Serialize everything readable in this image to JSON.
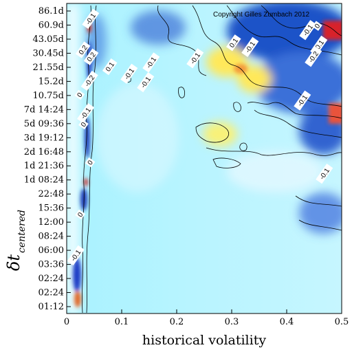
{
  "chart_data": {
    "type": "heatmap",
    "title": "",
    "copyright": "Copyright Gilles Zumbach 2012",
    "xlabel": "historical volatility",
    "ylabel_main": "δt",
    "ylabel_sub": "centered",
    "xlim": [
      0,
      0.5
    ],
    "x_ticks": [
      "0",
      "0.1",
      "0.2",
      "0.3",
      "0.4",
      "0.5"
    ],
    "y_ticks": [
      "01:12",
      "02:24",
      "02:24",
      "03:36",
      "06:00",
      "08:24",
      "12:00",
      "15:36",
      "22:48",
      "1d 08:24",
      "1d 21:36",
      "2d 16:48",
      "3d 19:12",
      "5d 09:36",
      "7d 14:24",
      "10.75d",
      "15.2d",
      "21.55d",
      "30.45d",
      "43.05d",
      "60.9d",
      "86.1d"
    ],
    "contour_labels": [
      {
        "text": "-0.1",
        "x": 0.045,
        "y": 20.4
      },
      {
        "text": "-0.1",
        "x": 0.44,
        "y": 19.6
      },
      {
        "text": "-0.1",
        "x": 0.46,
        "y": 18.5
      },
      {
        "text": "-0.2",
        "x": 0.45,
        "y": 17.7
      },
      {
        "text": "0.1",
        "x": 0.305,
        "y": 18.7
      },
      {
        "text": "-0.1",
        "x": 0.335,
        "y": 18.4
      },
      {
        "text": "0",
        "x": 0.457,
        "y": 19.9
      },
      {
        "text": "0.2",
        "x": 0.031,
        "y": 18.2
      },
      {
        "text": "0.2",
        "x": 0.046,
        "y": 17.7
      },
      {
        "text": "0.1",
        "x": 0.08,
        "y": 17.0
      },
      {
        "text": "-0.1",
        "x": 0.115,
        "y": 16.5
      },
      {
        "text": "-0.1",
        "x": 0.155,
        "y": 17.3
      },
      {
        "text": "-0.1",
        "x": 0.235,
        "y": 17.6
      },
      {
        "text": "-0.1",
        "x": 0.145,
        "y": 15.9
      },
      {
        "text": "-0.2",
        "x": 0.043,
        "y": 16.0
      },
      {
        "text": "0",
        "x": 0.025,
        "y": 15.0
      },
      {
        "text": "-0.1",
        "x": 0.43,
        "y": 14.6
      },
      {
        "text": "-0.1",
        "x": 0.036,
        "y": 13.7
      },
      {
        "text": "0",
        "x": 0.032,
        "y": 12.9
      },
      {
        "text": "0",
        "x": 0.044,
        "y": 10.2
      },
      {
        "text": "-0.1",
        "x": 0.47,
        "y": 9.4
      },
      {
        "text": "0",
        "x": 0.026,
        "y": 6.5
      },
      {
        "text": "-0.1",
        "x": 0.018,
        "y": 3.6
      }
    ]
  }
}
